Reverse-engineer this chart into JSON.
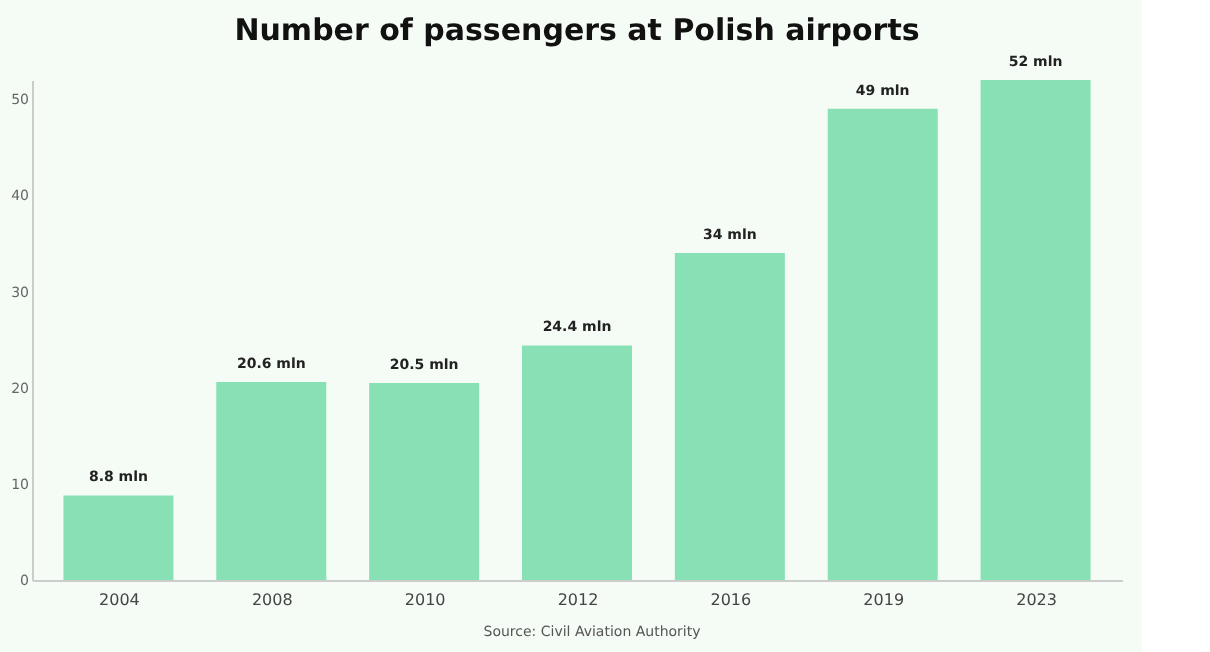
{
  "chart_data": {
    "type": "bar",
    "title": "Number of passengers at Polish airports",
    "categories": [
      "2004",
      "2008",
      "2010",
      "2012",
      "2016",
      "2019",
      "2023"
    ],
    "values": [
      8.8,
      20.6,
      20.5,
      24.4,
      34,
      49,
      52
    ],
    "value_labels": [
      "8.8 mln",
      "20.6 mln",
      "20.5 mln",
      "24.4 mln",
      "34 mln",
      "49 mln",
      "52 mln"
    ],
    "color": "#88e0b5",
    "ylim": [
      0,
      52
    ],
    "yticks": [
      0,
      10,
      20,
      30,
      40,
      50
    ],
    "grid": false,
    "annotations": [
      "Source: Civil Aviation Authority"
    ]
  }
}
